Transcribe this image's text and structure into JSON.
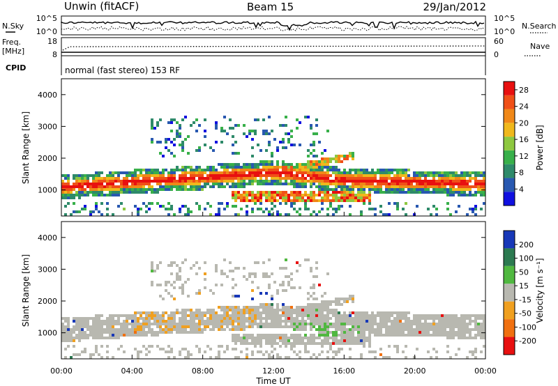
{
  "header": {
    "station": "Unwin (fitACF)",
    "beam": "Beam 15",
    "date": "29/Jan/2012"
  },
  "summary_panels": {
    "nsky": {
      "left_label": "N.Sky",
      "left_ticks": [
        "10^5",
        "10^0"
      ],
      "right_label": "N.Search",
      "right_ticks": [
        "10^5",
        "10^0"
      ]
    },
    "freq": {
      "left_label": "Freq.",
      "left_unit": "[MHz]",
      "left_ticks": [
        "18",
        "8"
      ],
      "right_label": "Nave",
      "right_ticks": [
        "60",
        "0"
      ]
    },
    "cpid": {
      "label": "CPID",
      "text": "normal (fast stereo) 153 RF"
    }
  },
  "colors": {
    "power_scale": [
      "#1010e0",
      "#2858b0",
      "#2e8a6a",
      "#38b04a",
      "#8ec840",
      "#f0b81c",
      "#f08818",
      "#f05018",
      "#e81010"
    ],
    "velocity_scale": [
      "#1838b8",
      "#2c7a50",
      "#50b840",
      "#b8b8b0",
      "#f0a020",
      "#f07010",
      "#e81010"
    ]
  },
  "chart_data": [
    {
      "type": "heatmap",
      "name": "power",
      "ylabel": "Slant Range [km]",
      "ylim": [
        180,
        4500
      ],
      "yticks": [
        "1000",
        "2000",
        "3000",
        "4000"
      ],
      "xlim": [
        "00:00",
        "24:00"
      ],
      "colorbar": {
        "label": "Power [dB]",
        "ticks": [
          "4",
          "8",
          "12",
          "16",
          "20",
          "24",
          "28"
        ],
        "range": [
          0,
          30
        ]
      },
      "bands": [
        {
          "t_start": 0.0,
          "t_end": 24.0,
          "range_start": 1000,
          "range_end": 1300,
          "level": "high",
          "note": "main echo band, rising to ~1500 km near 12:00"
        },
        {
          "t_start": 9.5,
          "t_end": 17.5,
          "range_start": 600,
          "range_end": 950,
          "level": "high"
        },
        {
          "t_start": 12.0,
          "t_end": 16.5,
          "range_start": 1500,
          "range_end": 1800,
          "level": "high"
        },
        {
          "t_start": 5.0,
          "t_end": 15.0,
          "range_start": 2000,
          "range_end": 3300,
          "level": "low"
        }
      ]
    },
    {
      "type": "heatmap",
      "name": "velocity",
      "ylabel": "Slant Range [km]",
      "ylim": [
        180,
        4500
      ],
      "yticks": [
        "1000",
        "2000",
        "3000",
        "4000"
      ],
      "xlabel": "Time UT",
      "xticks": [
        "00:00",
        "04:00",
        "08:00",
        "12:00",
        "16:00",
        "20:00",
        "00:00"
      ],
      "colorbar": {
        "label": "Velocity [m s⁻¹]",
        "ticks": [
          "200",
          "100",
          "50",
          "15",
          "-15",
          "-50",
          "-100",
          "-200"
        ]
      },
      "dominant_values": "mostly near zero (gray, ground scatter)"
    }
  ]
}
